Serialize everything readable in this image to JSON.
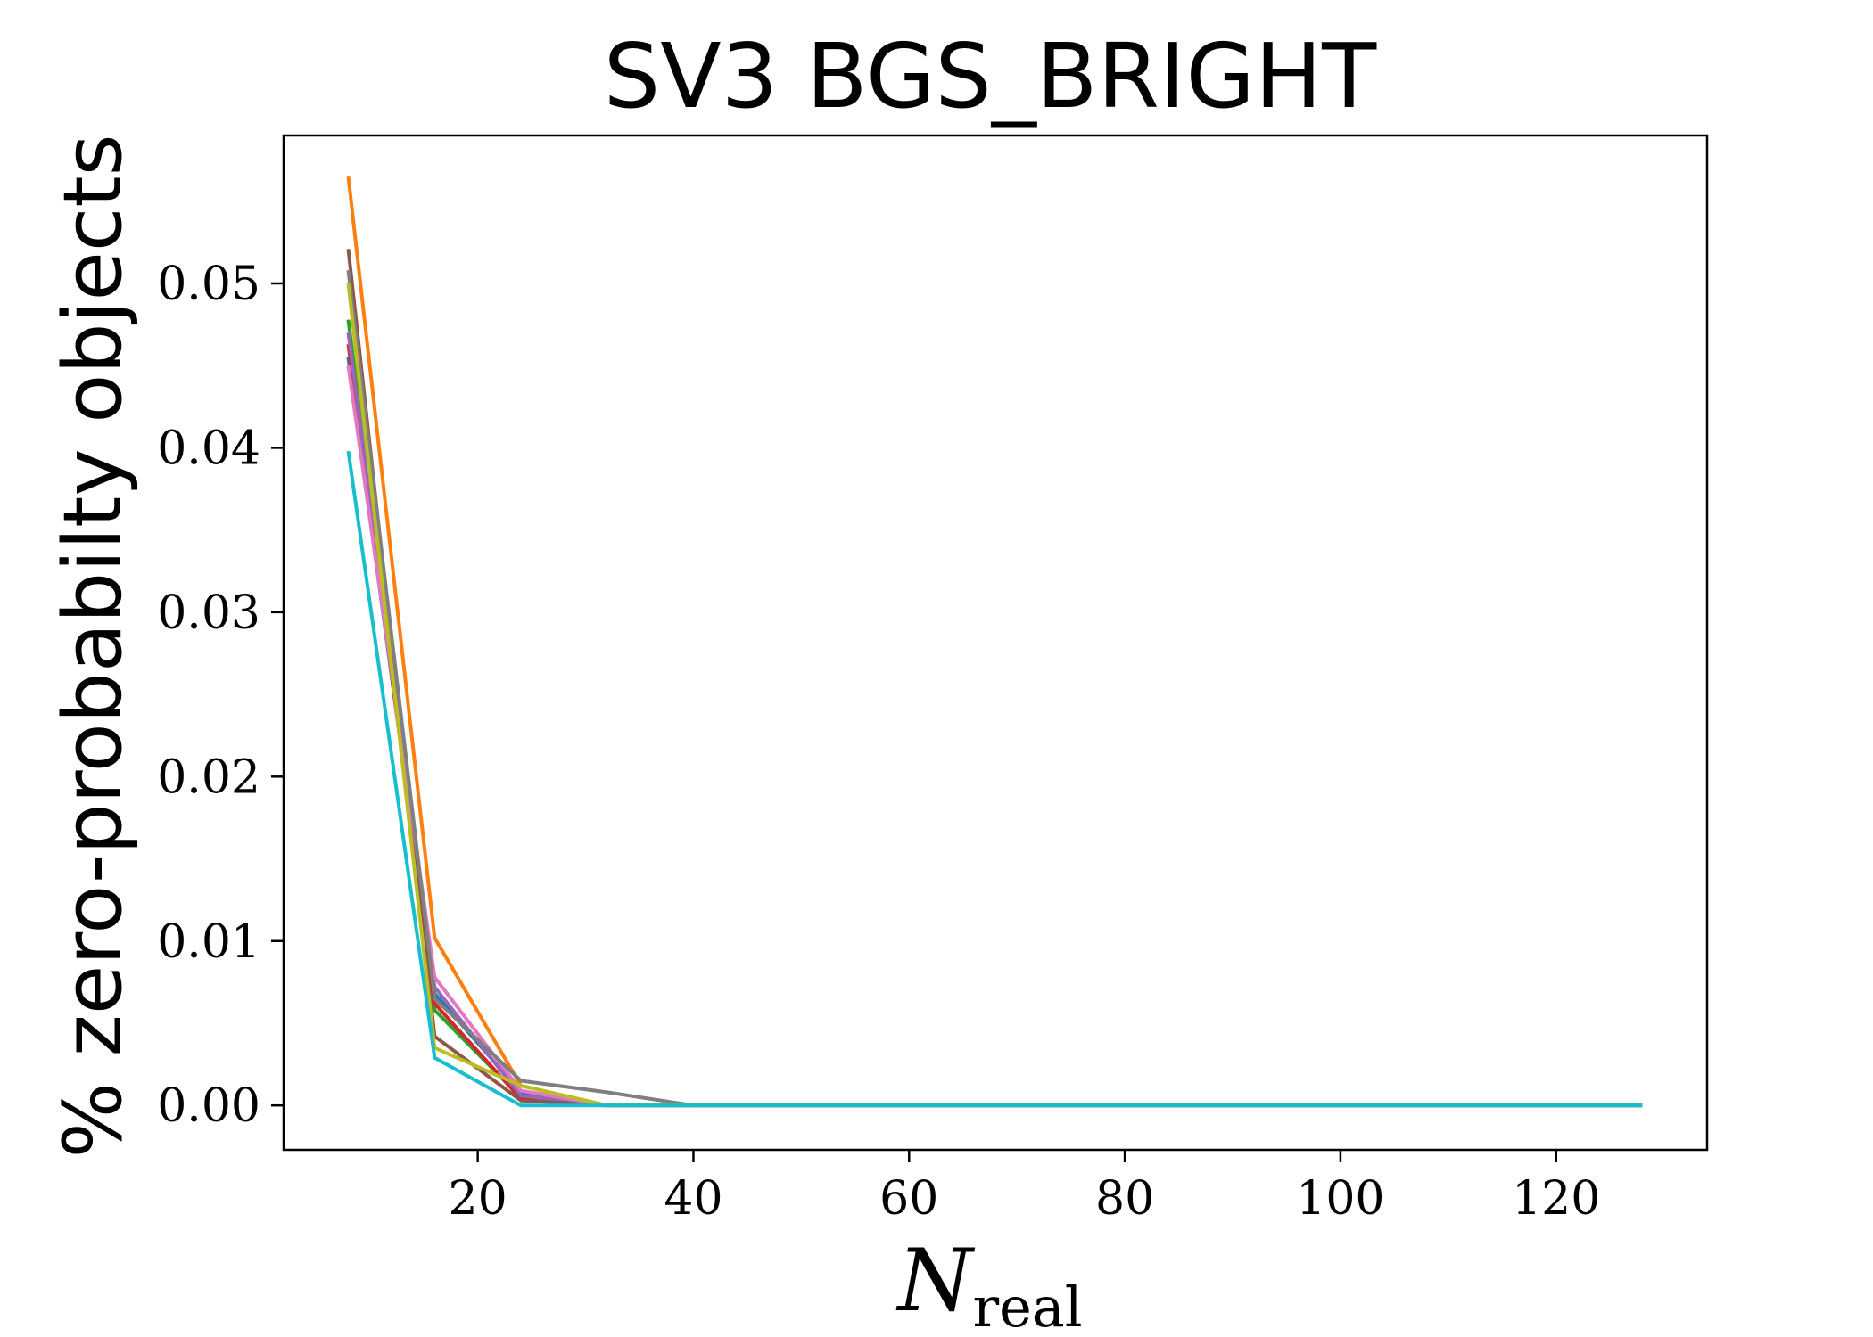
{
  "chart_data": {
    "type": "line",
    "title": "SV3 BGS_BRIGHT",
    "ylabel": "% zero-probabilty objects",
    "xlabel_main": "N",
    "xlabel_sub": "real",
    "xlim": [
      2,
      134
    ],
    "ylim": [
      -0.0027,
      0.059
    ],
    "xticks": [
      20,
      40,
      60,
      80,
      100,
      120
    ],
    "yticks": [
      0.0,
      0.01,
      0.02,
      0.03,
      0.04,
      0.05
    ],
    "ytick_labels": [
      "0.00",
      "0.01",
      "0.02",
      "0.03",
      "0.04",
      "0.05"
    ],
    "grid": false,
    "legend": "none",
    "x": [
      8,
      16,
      24,
      32,
      40,
      48,
      56,
      64,
      72,
      80,
      88,
      96,
      104,
      112,
      120,
      128
    ],
    "series": [
      {
        "color": "#1f77b4",
        "values": [
          0.0455,
          0.0068,
          0.0008,
          0,
          0,
          0,
          0,
          0,
          0,
          0,
          0,
          0,
          0,
          0,
          0,
          0
        ]
      },
      {
        "color": "#ff7f0e",
        "values": [
          0.0565,
          0.0102,
          0.0012,
          0,
          0,
          0,
          0,
          0,
          0,
          0,
          0,
          0,
          0,
          0,
          0,
          0
        ]
      },
      {
        "color": "#2ca02c",
        "values": [
          0.0478,
          0.0058,
          0.0005,
          0,
          0,
          0,
          0,
          0,
          0,
          0,
          0,
          0,
          0,
          0,
          0,
          0
        ]
      },
      {
        "color": "#d62728",
        "values": [
          0.0463,
          0.0062,
          0.0004,
          0,
          0,
          0,
          0,
          0,
          0,
          0,
          0,
          0,
          0,
          0,
          0,
          0
        ]
      },
      {
        "color": "#9467bd",
        "values": [
          0.047,
          0.0072,
          0.0006,
          0,
          0,
          0,
          0,
          0,
          0,
          0,
          0,
          0,
          0,
          0,
          0,
          0
        ]
      },
      {
        "color": "#8c564b",
        "values": [
          0.0521,
          0.0042,
          0.0003,
          0,
          0,
          0,
          0,
          0,
          0,
          0,
          0,
          0,
          0,
          0,
          0,
          0
        ]
      },
      {
        "color": "#e377c2",
        "values": [
          0.045,
          0.0078,
          0.0009,
          0,
          0,
          0,
          0,
          0,
          0,
          0,
          0,
          0,
          0,
          0,
          0,
          0
        ]
      },
      {
        "color": "#7f7f7f",
        "values": [
          0.0508,
          0.0065,
          0.0015,
          0.0008,
          0,
          0,
          0,
          0,
          0,
          0,
          0,
          0,
          0,
          0,
          0,
          0
        ]
      },
      {
        "color": "#bcbd22",
        "values": [
          0.05,
          0.0035,
          0.0012,
          0,
          0,
          0,
          0,
          0,
          0,
          0,
          0,
          0,
          0,
          0,
          0,
          0
        ]
      },
      {
        "color": "#17becf",
        "values": [
          0.0398,
          0.0029,
          0,
          0,
          0,
          0,
          0,
          0,
          0,
          0,
          0,
          0,
          0,
          0,
          0,
          0
        ]
      }
    ]
  }
}
